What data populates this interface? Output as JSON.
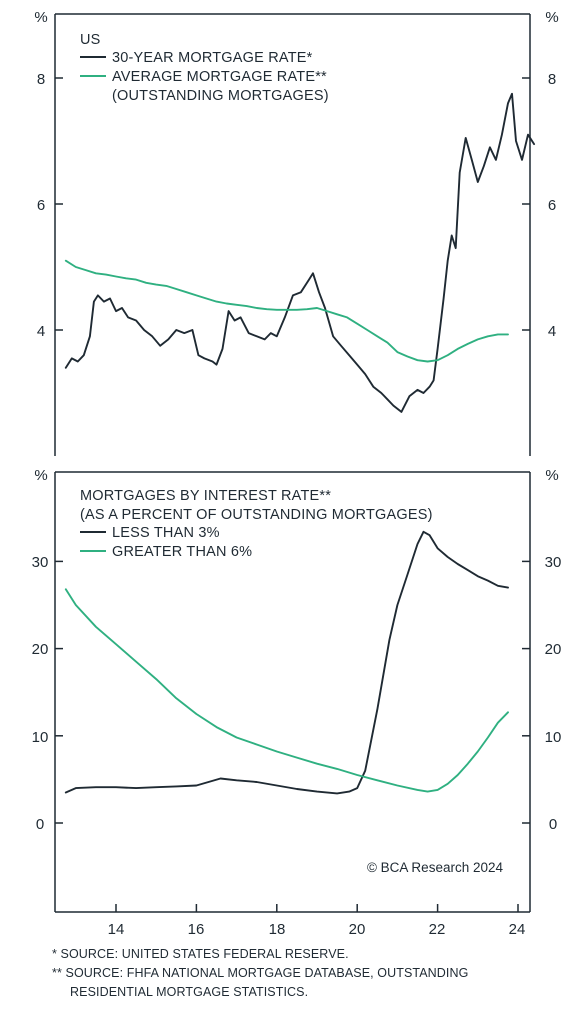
{
  "colors": {
    "dark": "#1f2a33",
    "green": "#2fb081"
  },
  "chart_data": [
    {
      "type": "line",
      "panel_label": "US",
      "y_unit_left": "%",
      "y_unit_right": "%",
      "ylim": [
        2.0,
        9.0
      ],
      "yticks": [
        4,
        6,
        8
      ],
      "xlim": [
        2012.7,
        2024.6
      ],
      "series": [
        {
          "name": "30-YEAR MORTGAGE RATE*",
          "color": "#1f2a33",
          "x": [
            2012.75,
            2012.9,
            2013.05,
            2013.2,
            2013.35,
            2013.45,
            2013.55,
            2013.7,
            2013.85,
            2014.0,
            2014.15,
            2014.3,
            2014.5,
            2014.7,
            2014.9,
            2015.1,
            2015.3,
            2015.5,
            2015.7,
            2015.9,
            2016.05,
            2016.2,
            2016.4,
            2016.5,
            2016.65,
            2016.8,
            2016.95,
            2017.1,
            2017.3,
            2017.5,
            2017.7,
            2017.85,
            2018.0,
            2018.2,
            2018.4,
            2018.6,
            2018.8,
            2018.9,
            2019.05,
            2019.2,
            2019.4,
            2019.6,
            2019.8,
            2020.0,
            2020.2,
            2020.4,
            2020.6,
            2020.75,
            2020.9,
            2021.1,
            2021.3,
            2021.5,
            2021.65,
            2021.8,
            2021.9,
            2022.0,
            2022.15,
            2022.25,
            2022.35,
            2022.45,
            2022.55,
            2022.7,
            2022.85,
            2023.0,
            2023.15,
            2023.3,
            2023.45,
            2023.6,
            2023.75,
            2023.85,
            2023.95,
            2024.1,
            2024.25,
            2024.4
          ],
          "y": [
            3.4,
            3.55,
            3.5,
            3.6,
            3.9,
            4.45,
            4.55,
            4.45,
            4.5,
            4.3,
            4.35,
            4.2,
            4.15,
            4.0,
            3.9,
            3.75,
            3.85,
            4.0,
            3.95,
            4.0,
            3.6,
            3.55,
            3.5,
            3.45,
            3.7,
            4.3,
            4.15,
            4.2,
            3.95,
            3.9,
            3.85,
            3.95,
            3.9,
            4.2,
            4.55,
            4.6,
            4.8,
            4.9,
            4.6,
            4.35,
            3.9,
            3.75,
            3.6,
            3.45,
            3.3,
            3.1,
            3.0,
            2.9,
            2.8,
            2.7,
            2.95,
            3.05,
            3.0,
            3.1,
            3.2,
            3.7,
            4.5,
            5.1,
            5.5,
            5.3,
            6.5,
            7.05,
            6.7,
            6.35,
            6.6,
            6.9,
            6.7,
            7.1,
            7.6,
            7.75,
            7.0,
            6.7,
            7.1,
            6.95
          ]
        },
        {
          "name": "AVERAGE MORTGAGE RATE**",
          "name_line2": "(OUTSTANDING MORTGAGES)",
          "color": "#2fb081",
          "x": [
            2012.75,
            2013.0,
            2013.25,
            2013.5,
            2013.75,
            2014.0,
            2014.25,
            2014.5,
            2014.75,
            2015.0,
            2015.25,
            2015.5,
            2015.75,
            2016.0,
            2016.25,
            2016.5,
            2016.75,
            2017.0,
            2017.25,
            2017.5,
            2017.75,
            2018.0,
            2018.25,
            2018.5,
            2018.75,
            2019.0,
            2019.25,
            2019.5,
            2019.75,
            2020.0,
            2020.25,
            2020.5,
            2020.75,
            2021.0,
            2021.25,
            2021.5,
            2021.75,
            2022.0,
            2022.25,
            2022.5,
            2022.75,
            2023.0,
            2023.25,
            2023.5,
            2023.75
          ],
          "y": [
            5.1,
            5.0,
            4.95,
            4.9,
            4.88,
            4.85,
            4.82,
            4.8,
            4.75,
            4.72,
            4.7,
            4.65,
            4.6,
            4.55,
            4.5,
            4.45,
            4.42,
            4.4,
            4.38,
            4.35,
            4.33,
            4.32,
            4.32,
            4.32,
            4.33,
            4.35,
            4.3,
            4.25,
            4.2,
            4.1,
            4.0,
            3.9,
            3.8,
            3.65,
            3.58,
            3.52,
            3.5,
            3.52,
            3.6,
            3.7,
            3.78,
            3.85,
            3.9,
            3.93,
            3.93
          ]
        }
      ]
    },
    {
      "type": "line",
      "title": "MORTGAGES BY INTEREST RATE**",
      "subtitle": "(AS A PERCENT OF OUTSTANDING MORTGAGES)",
      "y_unit_left": "%",
      "y_unit_right": "%",
      "ylim": [
        -10,
        40
      ],
      "yticks": [
        0,
        10,
        20,
        30
      ],
      "xlim": [
        2012.7,
        2024.6
      ],
      "xticks": [
        14,
        16,
        18,
        20,
        22,
        24
      ],
      "xticks_years": [
        2014,
        2016,
        2018,
        2020,
        2022,
        2024
      ],
      "series": [
        {
          "name": "LESS THAN 3%",
          "color": "#1f2a33",
          "x": [
            2012.75,
            2013.0,
            2013.5,
            2014.0,
            2014.5,
            2015.0,
            2015.5,
            2016.0,
            2016.3,
            2016.6,
            2017.0,
            2017.5,
            2018.0,
            2018.5,
            2019.0,
            2019.5,
            2019.8,
            2020.0,
            2020.2,
            2020.5,
            2020.8,
            2021.0,
            2021.25,
            2021.5,
            2021.65,
            2021.8,
            2022.0,
            2022.25,
            2022.5,
            2022.75,
            2023.0,
            2023.25,
            2023.5,
            2023.75
          ],
          "y": [
            3.5,
            4.0,
            4.1,
            4.1,
            4.0,
            4.1,
            4.2,
            4.3,
            4.7,
            5.1,
            4.9,
            4.7,
            4.3,
            3.9,
            3.6,
            3.4,
            3.6,
            4.0,
            6.0,
            13.0,
            21.0,
            25.0,
            28.5,
            32.0,
            33.4,
            33.0,
            31.5,
            30.5,
            29.7,
            29.0,
            28.3,
            27.8,
            27.2,
            27.0
          ]
        },
        {
          "name": "GREATER THAN 6%",
          "color": "#2fb081",
          "x": [
            2012.75,
            2013.0,
            2013.5,
            2014.0,
            2014.5,
            2015.0,
            2015.5,
            2016.0,
            2016.5,
            2017.0,
            2017.5,
            2018.0,
            2018.5,
            2019.0,
            2019.5,
            2020.0,
            2020.5,
            2021.0,
            2021.5,
            2021.75,
            2022.0,
            2022.25,
            2022.5,
            2022.75,
            2023.0,
            2023.25,
            2023.5,
            2023.75
          ],
          "y": [
            26.8,
            25.0,
            22.5,
            20.5,
            18.5,
            16.5,
            14.3,
            12.5,
            11.0,
            9.8,
            9.0,
            8.2,
            7.5,
            6.8,
            6.2,
            5.5,
            4.9,
            4.3,
            3.8,
            3.6,
            3.8,
            4.5,
            5.5,
            6.8,
            8.2,
            9.8,
            11.5,
            12.7
          ]
        }
      ]
    }
  ],
  "panel1": {
    "label": "US",
    "unit_left": "%",
    "unit_right": "%",
    "ticks": [
      "4",
      "6",
      "8"
    ],
    "legend_1": "30-YEAR MORTGAGE RATE*",
    "legend_2": "AVERAGE MORTGAGE RATE**",
    "legend_2b": "(OUTSTANDING MORTGAGES)"
  },
  "panel2": {
    "title": "MORTGAGES BY INTEREST RATE**",
    "subtitle": "(AS A PERCENT OF OUTSTANDING MORTGAGES)",
    "unit_left": "%",
    "unit_right": "%",
    "ticks": [
      "0",
      "10",
      "20",
      "30"
    ],
    "legend_1": "LESS THAN 3%",
    "legend_2": "GREATER THAN 6%",
    "credit": "© BCA Research 2024"
  },
  "x_axis": {
    "ticks": [
      "14",
      "16",
      "18",
      "20",
      "22",
      "24"
    ]
  },
  "footnotes": {
    "note_1": "*  SOURCE: UNITED STATES FEDERAL RESERVE.",
    "note_2": "** SOURCE: FHFA NATIONAL MORTGAGE DATABASE, OUTSTANDING",
    "note_2b": "RESIDENTIAL MORTGAGE STATISTICS."
  }
}
